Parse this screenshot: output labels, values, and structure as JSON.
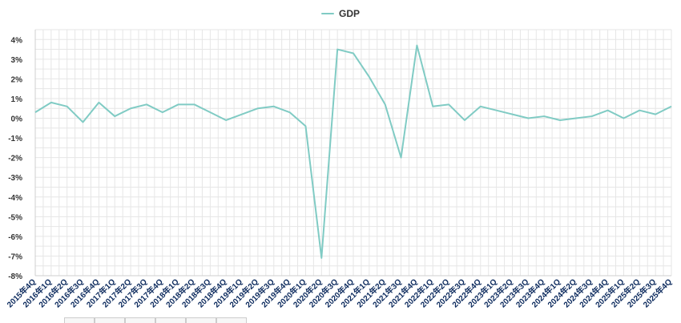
{
  "chart_data": {
    "type": "line",
    "legend": {
      "position": "top-center"
    },
    "categories": [
      "2015年4Q",
      "2016年1Q",
      "2016年2Q",
      "2016年3Q",
      "2016年4Q",
      "2017年1Q",
      "2017年2Q",
      "2017年3Q",
      "2017年4Q",
      "2018年1Q",
      "2018年2Q",
      "2018年3Q",
      "2018年4Q",
      "2019年1Q",
      "2019年2Q",
      "2019年3Q",
      "2019年4Q",
      "2020年1Q",
      "2020年2Q",
      "2020年3Q",
      "2020年4Q",
      "2021年1Q",
      "2021年2Q",
      "2021年3Q",
      "2021年4Q",
      "2022年1Q",
      "2022年2Q",
      "2022年3Q",
      "2022年4Q",
      "2023年1Q",
      "2023年2Q",
      "2023年3Q",
      "2023年4Q",
      "2024年1Q",
      "2024年2Q",
      "2024年3Q",
      "2024年4Q",
      "2025年1Q",
      "2025年2Q",
      "2025年3Q",
      "2025年4Q"
    ],
    "series": [
      {
        "name": "GDP",
        "color": "#80cbc4",
        "values": [
          0.3,
          0.8,
          0.6,
          -0.2,
          0.8,
          0.1,
          0.5,
          0.7,
          0.3,
          0.7,
          0.7,
          0.3,
          -0.1,
          0.2,
          0.5,
          0.6,
          0.3,
          -0.4,
          -7.1,
          3.5,
          3.3,
          2.1,
          0.7,
          -2.0,
          3.7,
          0.6,
          0.7,
          -0.1,
          0.6,
          0.4,
          0.2,
          0.0,
          0.1,
          -0.1,
          0.0,
          0.1,
          0.4,
          0.0,
          0.4,
          0.2,
          0.6
        ]
      }
    ],
    "y_ticks": [
      "4%",
      "3%",
      "2%",
      "1%",
      "0%",
      "-1%",
      "-2%",
      "-3%",
      "-4%",
      "-5%",
      "-6%",
      "-7%",
      "-8%"
    ],
    "ylim": [
      -8,
      4.5
    ],
    "grid": true
  }
}
